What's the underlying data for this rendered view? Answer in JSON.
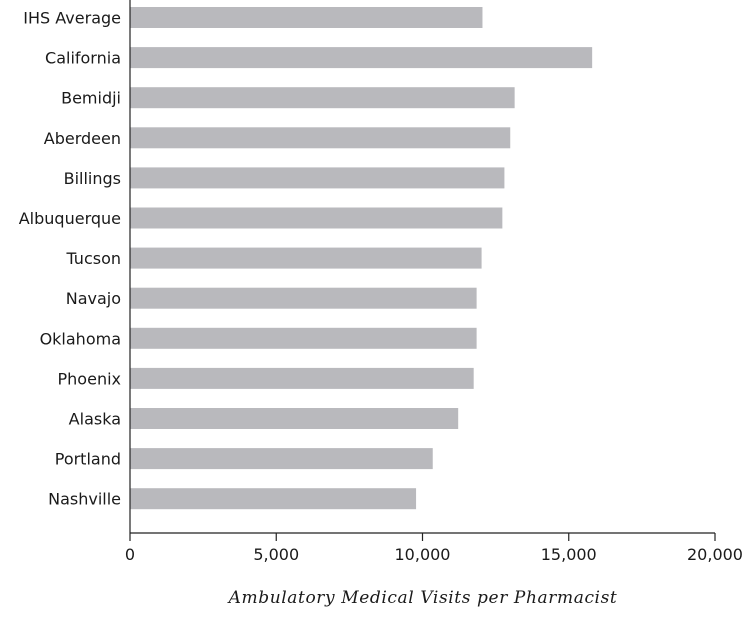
{
  "chart_data": {
    "type": "bar",
    "orientation": "horizontal",
    "categories": [
      "IHS Average",
      "California",
      "Bemidji",
      "Aberdeen",
      "Billings",
      "Albuquerque",
      "Tucson",
      "Navajo",
      "Oklahoma",
      "Phoenix",
      "Alaska",
      "Portland",
      "Nashville"
    ],
    "values": [
      12050,
      15800,
      13150,
      13000,
      12800,
      12730,
      12020,
      11850,
      11850,
      11750,
      11220,
      10350,
      9780
    ],
    "xlabel": "Ambulatory Medical Visits per Pharmacist",
    "ylabel": "",
    "xlim": [
      0,
      20000
    ],
    "xticks": [
      0,
      5000,
      10000,
      15000,
      20000
    ],
    "xtick_labels": [
      "0",
      "5,000",
      "10,000",
      "15,000",
      "20,000"
    ],
    "bar_color": "#b9b9bd",
    "axis_color": "#222222",
    "grid": false,
    "legend": "none"
  }
}
